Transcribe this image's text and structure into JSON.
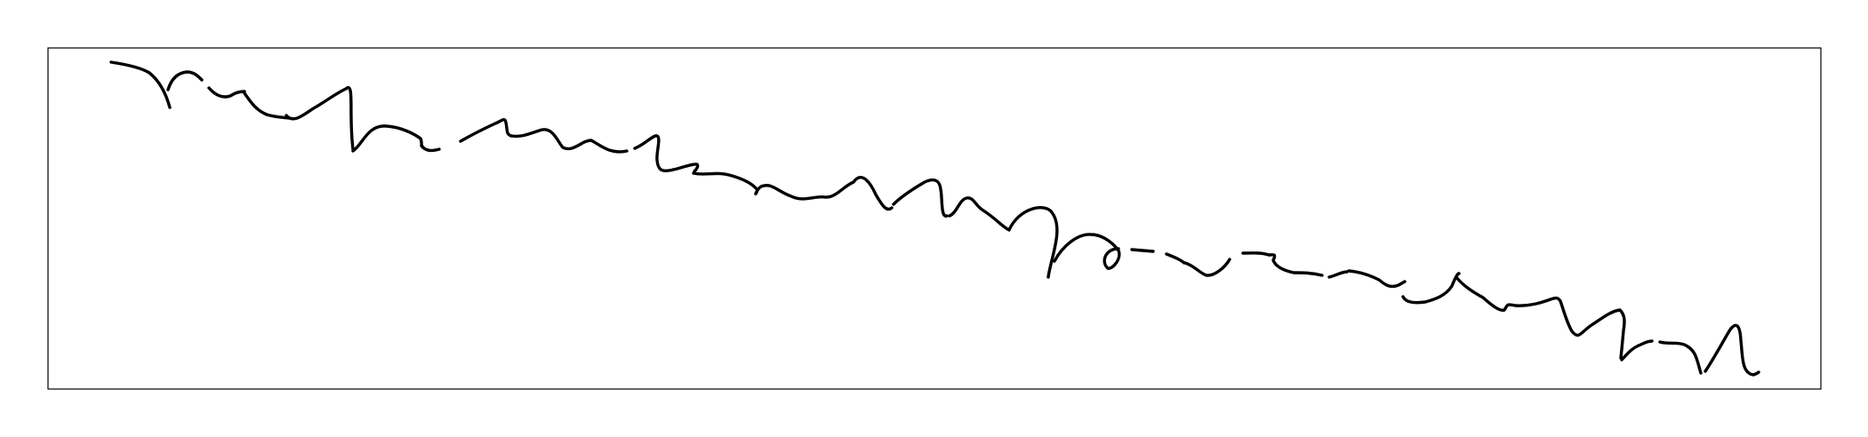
{
  "canvas": {
    "background_color": "#ffffff",
    "frame_color": "#000000",
    "ink_color": "#000000"
  },
  "content": {
    "type": "handwritten-stroke-trace",
    "text": ""
  }
}
